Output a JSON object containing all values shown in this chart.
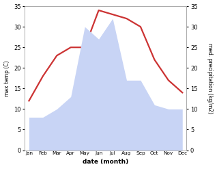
{
  "months": [
    "Jan",
    "Feb",
    "Mar",
    "Apr",
    "May",
    "Jun",
    "Jul",
    "Aug",
    "Sep",
    "Oct",
    "Nov",
    "Dec"
  ],
  "temperature": [
    12,
    18,
    23,
    25,
    25,
    34,
    33,
    32,
    30,
    22,
    17,
    14
  ],
  "precipitation": [
    8,
    8,
    10,
    13,
    30,
    27,
    32,
    17,
    17,
    11,
    10,
    10
  ],
  "temp_color": "#cc3333",
  "precip_color_fill": "#c8d4f5",
  "ylabel_left": "max temp (C)",
  "ylabel_right": "med. precipitation (kg/m2)",
  "xlabel": "date (month)",
  "ylim_left": [
    0,
    35
  ],
  "ylim_right": [
    0,
    35
  ],
  "yticks_left": [
    0,
    5,
    10,
    15,
    20,
    25,
    30,
    35
  ],
  "yticks_right": [
    0,
    5,
    10,
    15,
    20,
    25,
    30,
    35
  ],
  "background_color": "#ffffff",
  "line_width": 1.6,
  "fill_alpha": 1.0
}
